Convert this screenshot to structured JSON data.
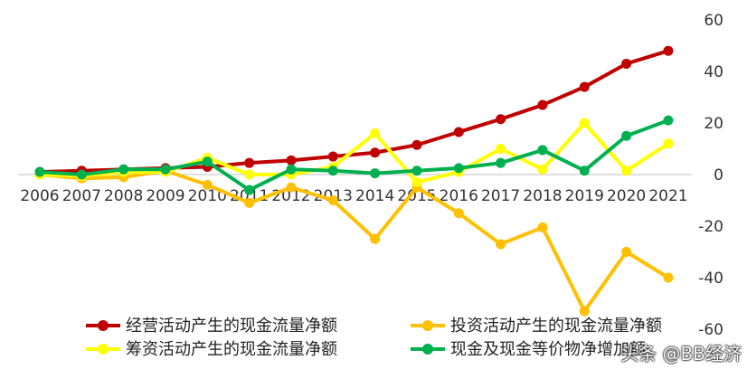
{
  "chart_data": {
    "type": "line",
    "title": "",
    "xlabel": "",
    "ylabel": "",
    "ylim": [
      -60,
      60
    ],
    "yticks": [
      60,
      40,
      20,
      0,
      -20,
      -40,
      -60
    ],
    "ytick_labels": [
      "60",
      "40",
      "20",
      "0",
      "-20",
      "-40",
      "-60"
    ],
    "grid": false,
    "legend_position": "bottom",
    "x": [
      "2006",
      "2007",
      "2008",
      "2009",
      "2010",
      "2011",
      "2012",
      "2013",
      "2014",
      "2015",
      "2016",
      "2017",
      "2018",
      "2019",
      "2020",
      "2021"
    ],
    "series": [
      {
        "name": "经营活动产生的现金流量净额",
        "color": "#C00000",
        "values": [
          1,
          1.5,
          2,
          2.5,
          3,
          4.5,
          5.5,
          7,
          8.5,
          11.5,
          16.5,
          21.5,
          27,
          34,
          43,
          48
        ]
      },
      {
        "name": "投资活动产生的现金流量净额",
        "color": "#FFC000",
        "values": [
          0,
          -1.5,
          -1,
          1.5,
          -4,
          -11,
          -5,
          -10,
          -25,
          -5,
          -15,
          -27,
          -20.5,
          -53,
          -30,
          -40
        ]
      },
      {
        "name": "筹资活动产生的现金流量净额",
        "color": "#FFFF00",
        "values": [
          0,
          -0.5,
          1,
          1,
          6.5,
          0,
          0,
          3,
          16,
          -3,
          1,
          10,
          2,
          20,
          1.5,
          12
        ]
      },
      {
        "name": "现金及现金等价物净增加额",
        "color": "#00B050",
        "values": [
          1,
          0,
          2,
          2,
          5,
          -6,
          2,
          1.5,
          0.5,
          1.5,
          2.5,
          4.5,
          9.5,
          1.5,
          15,
          21
        ]
      }
    ]
  },
  "watermark": "头条 @BB经济"
}
